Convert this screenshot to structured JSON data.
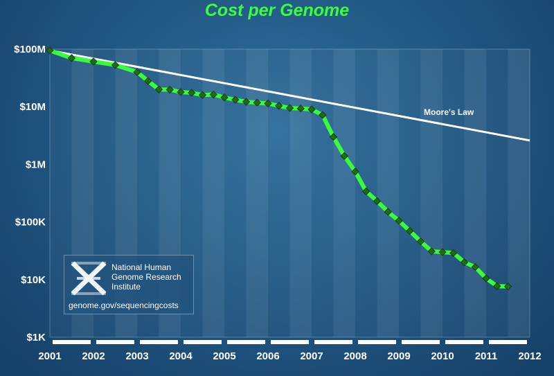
{
  "chart_data": {
    "type": "line",
    "title": "Cost per Genome",
    "xlabel": "",
    "ylabel": "",
    "yscale": "log",
    "ylim": [
      1000,
      100000000
    ],
    "xlim": [
      2001,
      2012
    ],
    "yticks": [
      {
        "value": 100000000,
        "label": "$100M"
      },
      {
        "value": 10000000,
        "label": "$10M"
      },
      {
        "value": 1000000,
        "label": "$1M"
      },
      {
        "value": 100000,
        "label": "$100K"
      },
      {
        "value": 10000,
        "label": "$10K"
      },
      {
        "value": 1000,
        "label": "$1K"
      }
    ],
    "xticks": [
      "2001",
      "2002",
      "2003",
      "2004",
      "2005",
      "2006",
      "2007",
      "2008",
      "2009",
      "2010",
      "2011",
      "2012"
    ],
    "colors": {
      "cost": "#39ff3a",
      "marker": "#1d6e12",
      "moore": "#ffffff"
    },
    "series": [
      {
        "points": [
          [
            2001.0,
            95000000
          ],
          [
            2001.5,
            70000000
          ],
          [
            2002.0,
            61000000
          ],
          [
            2002.5,
            53000000
          ],
          [
            2003.0,
            40000000
          ],
          [
            2003.25,
            28000000
          ],
          [
            2003.5,
            20000000
          ],
          [
            2003.75,
            19800000
          ],
          [
            2004.0,
            18000000
          ],
          [
            2004.25,
            17500000
          ],
          [
            2004.5,
            16000000
          ],
          [
            2004.75,
            16300000
          ],
          [
            2005.0,
            14500000
          ],
          [
            2005.25,
            13200000
          ],
          [
            2005.5,
            12200000
          ],
          [
            2005.75,
            11800000
          ],
          [
            2006.0,
            11400000
          ],
          [
            2006.25,
            10400000
          ],
          [
            2006.5,
            9500000
          ],
          [
            2006.75,
            9300000
          ],
          [
            2007.0,
            9000000
          ],
          [
            2007.25,
            7200000
          ],
          [
            2007.5,
            3000000
          ],
          [
            2007.75,
            1400000
          ],
          [
            2008.0,
            750000
          ],
          [
            2008.25,
            340000
          ],
          [
            2008.5,
            230000
          ],
          [
            2008.75,
            150000
          ],
          [
            2009.0,
            105000
          ],
          [
            2009.25,
            70000
          ],
          [
            2009.5,
            46000
          ],
          [
            2009.75,
            31000
          ],
          [
            2010.0,
            30000
          ],
          [
            2010.25,
            29000
          ],
          [
            2010.5,
            20000
          ],
          [
            2010.75,
            16500
          ],
          [
            2011.0,
            10500
          ],
          [
            2011.25,
            7700
          ],
          [
            2011.5,
            7600
          ]
        ]
      },
      {
        "name": "Moore's Law",
        "points": [
          [
            2001.0,
            95000000
          ],
          [
            2012.0,
            2600000
          ]
        ]
      }
    ],
    "grid": false,
    "legend": "none"
  },
  "logo": {
    "name_lines": [
      "National Human",
      "Genome Research",
      "Institute"
    ],
    "url": "genome.gov/sequencingcosts"
  }
}
